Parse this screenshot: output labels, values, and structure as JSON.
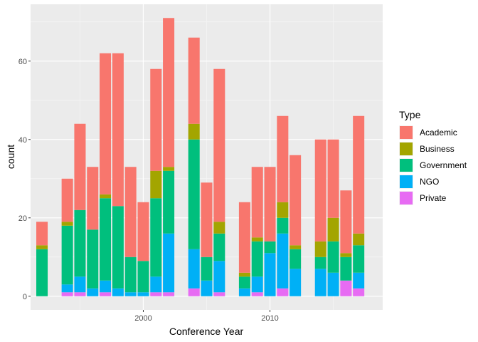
{
  "chart_data": {
    "type": "bar",
    "stacked": true,
    "xlabel": "Conference Year",
    "ylabel": "count",
    "x_ticks": [
      2000,
      2010
    ],
    "y_ticks": [
      0,
      20,
      40,
      60
    ],
    "xlim": [
      1991.1,
      2018.9
    ],
    "ylim": [
      -3.5,
      74.5
    ],
    "grid": true,
    "legend_title": "Type",
    "legend_position": "right",
    "years": [
      1992,
      1994,
      1995,
      1996,
      1997,
      1998,
      1999,
      2000,
      2001,
      2002,
      2004,
      2005,
      2006,
      2008,
      2009,
      2010,
      2011,
      2012,
      2014,
      2015,
      2016,
      2017
    ],
    "series": [
      {
        "name": "Private",
        "color": "#E76BF3",
        "values": [
          0,
          1,
          1,
          0,
          1,
          0,
          0,
          0,
          1,
          1,
          2,
          0,
          1,
          0,
          1,
          0,
          2,
          0,
          0,
          0,
          4,
          2
        ]
      },
      {
        "name": "NGO",
        "color": "#00B0F6",
        "values": [
          0,
          2,
          4,
          2,
          3,
          2,
          1,
          1,
          4,
          15,
          10,
          4,
          8,
          2,
          4,
          11,
          14,
          7,
          7,
          6,
          0,
          4
        ]
      },
      {
        "name": "Government",
        "color": "#00BF7D",
        "values": [
          12,
          15,
          17,
          15,
          21,
          21,
          9,
          8,
          20,
          16,
          28,
          6,
          7,
          3,
          9,
          3,
          4,
          5,
          3,
          8,
          6,
          7
        ]
      },
      {
        "name": "Business",
        "color": "#A3A500",
        "values": [
          1,
          1,
          0,
          0,
          1,
          0,
          0,
          0,
          7,
          1,
          4,
          0,
          3,
          1,
          1,
          0,
          4,
          1,
          4,
          6,
          1,
          3
        ]
      },
      {
        "name": "Academic",
        "color": "#F8766D",
        "values": [
          6,
          11,
          22,
          16,
          36,
          39,
          23,
          15,
          26,
          38,
          22,
          19,
          39,
          18,
          18,
          19,
          22,
          23,
          26,
          20,
          16,
          30
        ]
      }
    ],
    "legend_order": [
      "Academic",
      "Business",
      "Government",
      "NGO",
      "Private"
    ]
  }
}
